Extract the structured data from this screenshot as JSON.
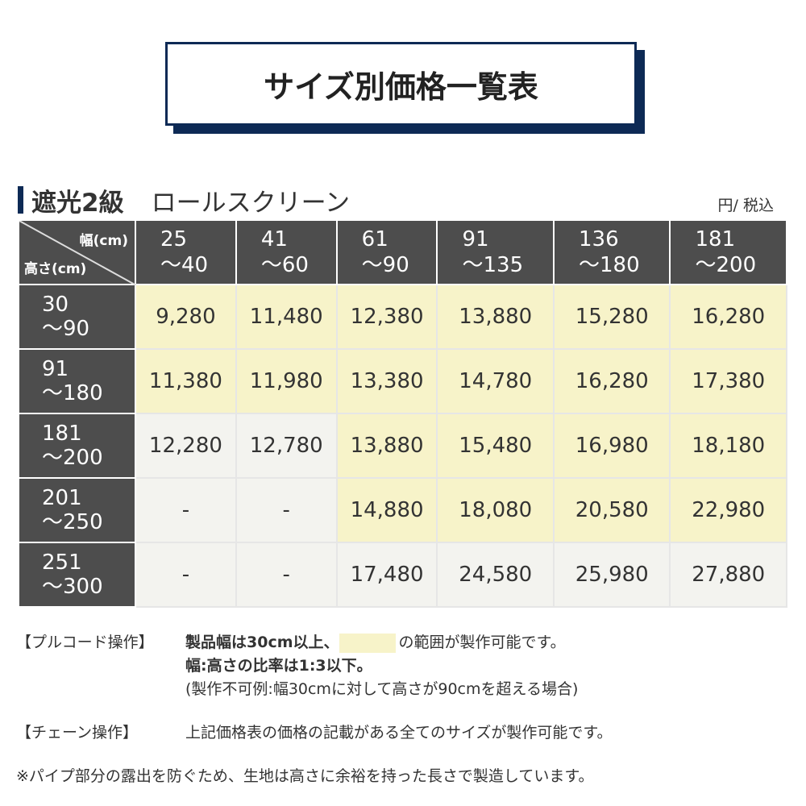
{
  "title": "サイズ別価格一覧表",
  "section": {
    "grade": "遮光2級",
    "product": "ロールスクリーン",
    "unit": "円/ 税込"
  },
  "table": {
    "corner_width": "幅(cm)",
    "corner_height": "高さ(cm)",
    "columns": [
      [
        "25",
        "～40"
      ],
      [
        "41",
        "～60"
      ],
      [
        "61",
        "～90"
      ],
      [
        "91",
        "～135"
      ],
      [
        "136",
        "～180"
      ],
      [
        "181",
        "～200"
      ]
    ],
    "rows": [
      {
        "h": [
          "30",
          "～90"
        ],
        "prices": [
          "9,280",
          "11,480",
          "12,380",
          "13,880",
          "15,280",
          "16,280"
        ],
        "highlight": [
          1,
          1,
          1,
          1,
          1,
          1
        ]
      },
      {
        "h": [
          "91",
          "～180"
        ],
        "prices": [
          "11,380",
          "11,980",
          "13,380",
          "14,780",
          "16,280",
          "17,380"
        ],
        "highlight": [
          1,
          1,
          1,
          1,
          1,
          1
        ]
      },
      {
        "h": [
          "181",
          "～200"
        ],
        "prices": [
          "12,280",
          "12,780",
          "13,880",
          "15,480",
          "16,980",
          "18,180"
        ],
        "highlight": [
          0,
          0,
          1,
          1,
          1,
          1
        ]
      },
      {
        "h": [
          "201",
          "～250"
        ],
        "prices": [
          "-",
          "-",
          "14,880",
          "18,080",
          "20,580",
          "22,980"
        ],
        "highlight": [
          0,
          0,
          1,
          1,
          1,
          1
        ]
      },
      {
        "h": [
          "251",
          "～300"
        ],
        "prices": [
          "-",
          "-",
          "17,480",
          "24,580",
          "25,980",
          "27,880"
        ],
        "highlight": [
          0,
          0,
          0,
          0,
          0,
          0
        ]
      }
    ]
  },
  "notes": {
    "pull_label": "【プルコード操作】",
    "pull_1a": "製品幅は30cm以上、",
    "pull_1b": "の範囲が製作可能です。",
    "pull_2": "幅:高さの比率は1:3以下。",
    "pull_3": "(製作不可例:幅30cmに対して高さが90cmを超える場合)",
    "chain_label": "【チェーン操作】",
    "chain_text": "上記価格表の価格の記載がある全てのサイズが製作可能です。",
    "footnote": "※パイプ部分の露出を防ぐため、生地は高さに余裕を持った長さで製造しています。"
  },
  "colors": {
    "navy": "#0d2a55",
    "header": "#4d4d4d",
    "available": "#f7f3c9",
    "unavailable": "#f3f3ef"
  }
}
